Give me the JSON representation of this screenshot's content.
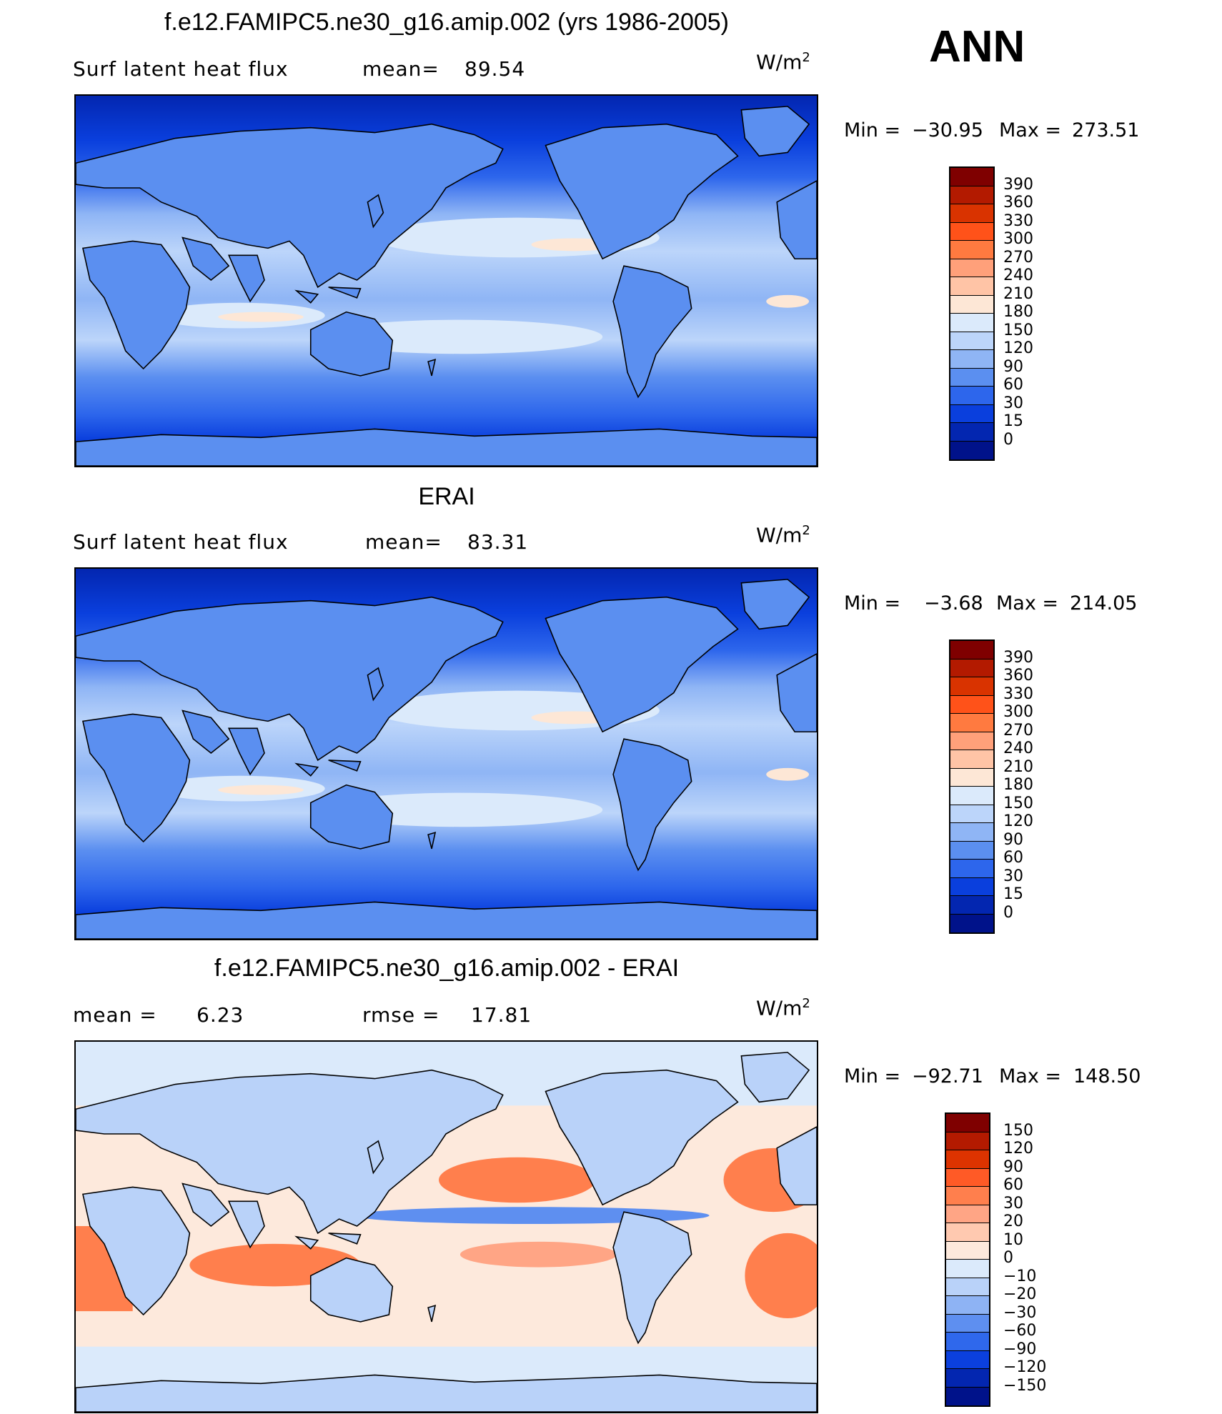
{
  "season": "ANN",
  "units_base": "W/m",
  "units_exp": "2",
  "panels": [
    {
      "title": "f.e12.FAMIPC5.ne30_g16.amip.002 (yrs 1986-2005)",
      "left_label": "Surf latent heat flux",
      "stat_label": "mean=",
      "stat_value": "89.54",
      "min_label": "Min =",
      "min_value": "−30.95",
      "max_label": "Max =",
      "max_value": "273.51",
      "colorbar": {
        "labels": [
          "390",
          "360",
          "330",
          "300",
          "270",
          "240",
          "210",
          "180",
          "150",
          "120",
          "90",
          "60",
          "30",
          "15",
          "0"
        ],
        "colors": [
          "#7f0000",
          "#b31a00",
          "#d93300",
          "#ff5219",
          "#ff7a40",
          "#ffa07a",
          "#ffc4a6",
          "#fde7d6",
          "#dbeafb",
          "#bcd5fa",
          "#8fb5f5",
          "#5b8ff0",
          "#2d66ec",
          "#0a3fdd",
          "#0326b0",
          "#00128a"
        ]
      },
      "map": {
        "mode": "full"
      }
    },
    {
      "title": "ERAI",
      "left_label": "Surf latent heat flux",
      "stat_label": "mean=",
      "stat_value": "83.31",
      "min_label": "Min =",
      "min_value": "−3.68",
      "max_label": "Max =",
      "max_value": "214.05",
      "colorbar": {
        "labels": [
          "390",
          "360",
          "330",
          "300",
          "270",
          "240",
          "210",
          "180",
          "150",
          "120",
          "90",
          "60",
          "30",
          "15",
          "0"
        ],
        "colors": [
          "#7f0000",
          "#b31a00",
          "#d93300",
          "#ff5219",
          "#ff7a40",
          "#ffa07a",
          "#ffc4a6",
          "#fde7d6",
          "#dbeafb",
          "#bcd5fa",
          "#8fb5f5",
          "#5b8ff0",
          "#2d66ec",
          "#0a3fdd",
          "#0326b0",
          "#00128a"
        ]
      },
      "map": {
        "mode": "full"
      }
    },
    {
      "title": "f.e12.FAMIPC5.ne30_g16.amip.002 - ERAI",
      "left_label": "mean =",
      "left_value": "6.23",
      "stat_label": "rmse =",
      "stat_value": "17.81",
      "min_label": "Min =",
      "min_value": "−92.71",
      "max_label": "Max =",
      "max_value": "148.50",
      "colorbar": {
        "labels": [
          "150",
          "120",
          "90",
          "60",
          "30",
          "20",
          "10",
          "0",
          "−10",
          "−20",
          "−30",
          "−60",
          "−90",
          "−120",
          "−150"
        ],
        "colors": [
          "#7f0000",
          "#b31a00",
          "#dd3300",
          "#ff5a26",
          "#ff7f4d",
          "#ffa585",
          "#ffc9b0",
          "#fde9dc",
          "#dbeafb",
          "#b9d2f9",
          "#8eb3f4",
          "#5e8ff0",
          "#2f68ec",
          "#0b40de",
          "#0326b0",
          "#00128a"
        ]
      },
      "map": {
        "mode": "diff"
      }
    }
  ]
}
